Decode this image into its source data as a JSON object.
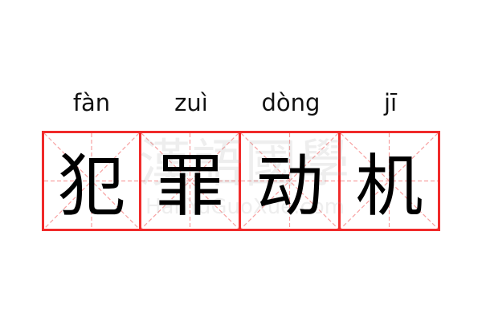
{
  "word": [
    {
      "pinyin": "fàn",
      "hanzi": "犯"
    },
    {
      "pinyin": "zuì",
      "hanzi": "罪"
    },
    {
      "pinyin": "dòng",
      "hanzi": "动"
    },
    {
      "pinyin": "jī",
      "hanzi": "机"
    }
  ],
  "watermark": {
    "logo": "漢語國學",
    "site": "HanYuGuoXue.com"
  },
  "colors": {
    "grid_border": "#f02a2a",
    "grid_guides": "#f7a0a0",
    "text": "#000000"
  }
}
